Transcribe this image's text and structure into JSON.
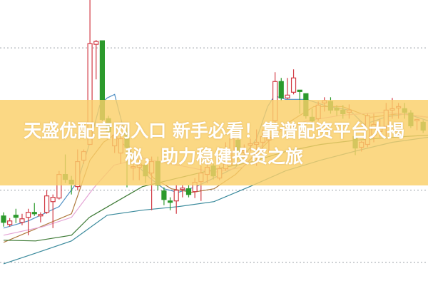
{
  "title": "天盛优配官网入口 新手必看！靠谱配资平台大揭秘，助力稳健投资之旅",
  "colors": {
    "up": "#d23a44",
    "down": "#2c9a2c",
    "banner": "#f9d069",
    "grid": "#9aa0a8"
  },
  "chart_data": {
    "type": "candlestick",
    "title": "",
    "xlabel": "",
    "ylabel": "",
    "ylim": [
      0,
      100
    ],
    "grid": {
      "horizontal": true,
      "style": "dotted",
      "levels": [
        83.25,
        33.5,
        8.25
      ]
    },
    "candles": [
      {
        "o": 24.5,
        "h": 25.75,
        "l": 20.75,
        "c": 22.25
      },
      {
        "o": 21.5,
        "h": 23.75,
        "l": 20.75,
        "c": 22.75
      },
      {
        "o": 24.75,
        "h": 27,
        "l": 22,
        "c": 24
      },
      {
        "o": 22.25,
        "h": 25.25,
        "l": 21.25,
        "c": 23.5
      },
      {
        "o": 24,
        "h": 27,
        "l": 17.75,
        "c": 25.75
      },
      {
        "o": 25.75,
        "h": 29,
        "l": 24.5,
        "c": 25.25
      },
      {
        "o": 24.5,
        "h": 25.75,
        "l": 22.25,
        "c": 25
      },
      {
        "o": 25.75,
        "h": 33.5,
        "l": 25.25,
        "c": 31.5
      },
      {
        "o": 29.5,
        "h": 32,
        "l": 20.25,
        "c": 31
      },
      {
        "o": 30.75,
        "h": 40.25,
        "l": 30.25,
        "c": 39
      },
      {
        "o": 39,
        "h": 46,
        "l": 36,
        "c": 37.25
      },
      {
        "o": 37,
        "h": 38.5,
        "l": 32,
        "c": 35.75
      },
      {
        "o": 34.75,
        "h": 47.75,
        "l": 33.5,
        "c": 43.5
      },
      {
        "o": 44,
        "h": 47.75,
        "l": 42.75,
        "c": 47
      },
      {
        "o": 49.5,
        "h": 100,
        "l": 49.5,
        "c": 84.75
      },
      {
        "o": 84.5,
        "h": 86,
        "l": 72.25,
        "c": 85.5
      },
      {
        "o": 85.75,
        "h": 85.75,
        "l": 57.75,
        "c": 58.25
      },
      {
        "o": 58.5,
        "h": 59.5,
        "l": 53.5,
        "c": 54
      },
      {
        "o": 49,
        "h": 55.25,
        "l": 46.5,
        "c": 52.75
      },
      {
        "o": 46.5,
        "h": 54,
        "l": 42.75,
        "c": 51.5
      },
      {
        "o": 53.5,
        "h": 55.25,
        "l": 34.5,
        "c": 48.5
      },
      {
        "o": 41.25,
        "h": 42.75,
        "l": 37,
        "c": 41.75
      },
      {
        "o": 41.5,
        "h": 43.5,
        "l": 37,
        "c": 42.25
      },
      {
        "o": 42.25,
        "h": 42.75,
        "l": 36,
        "c": 38.5
      },
      {
        "o": 39.5,
        "h": 45.25,
        "l": 26.5,
        "c": 43.5
      },
      {
        "o": 43.5,
        "h": 45.25,
        "l": 33.5,
        "c": 35.25
      },
      {
        "o": 33.25,
        "h": 34.5,
        "l": 28.25,
        "c": 30.25
      },
      {
        "o": 29.75,
        "h": 31,
        "l": 26.5,
        "c": 29.25
      },
      {
        "o": 29.75,
        "h": 35.25,
        "l": 25.25,
        "c": 33.5
      },
      {
        "o": 33.75,
        "h": 35.25,
        "l": 31,
        "c": 34.25
      },
      {
        "o": 34,
        "h": 35.25,
        "l": 31,
        "c": 32
      },
      {
        "o": 33,
        "h": 37.75,
        "l": 30.75,
        "c": 36.25
      },
      {
        "o": 36.5,
        "h": 42,
        "l": 29.75,
        "c": 39.5
      },
      {
        "o": 39,
        "h": 42.75,
        "l": 36,
        "c": 41.5
      },
      {
        "o": 42,
        "h": 42.75,
        "l": 37.25,
        "c": 38.5
      },
      {
        "o": 37.75,
        "h": 42,
        "l": 37,
        "c": 41
      },
      {
        "o": 41,
        "h": 50.25,
        "l": 40.25,
        "c": 42.75
      },
      {
        "o": 47,
        "h": 53.5,
        "l": 42,
        "c": 51.5
      },
      {
        "o": 51,
        "h": 52,
        "l": 44,
        "c": 47
      },
      {
        "o": 46.75,
        "h": 49.5,
        "l": 42.75,
        "c": 47.25
      },
      {
        "o": 49.25,
        "h": 51.5,
        "l": 47,
        "c": 49.75
      },
      {
        "o": 49.5,
        "h": 54.75,
        "l": 42,
        "c": 50.25
      },
      {
        "o": 50.25,
        "h": 54.75,
        "l": 47,
        "c": 52.25
      },
      {
        "o": 51,
        "h": 54.75,
        "l": 47,
        "c": 52
      },
      {
        "o": 57.75,
        "h": 74.75,
        "l": 56,
        "c": 71.5
      },
      {
        "o": 71.5,
        "h": 72.75,
        "l": 64.75,
        "c": 65.75
      },
      {
        "o": 65.75,
        "h": 72.75,
        "l": 65.25,
        "c": 66.75
      },
      {
        "o": 67.75,
        "h": 75.75,
        "l": 67,
        "c": 72.75
      },
      {
        "o": 68.5,
        "h": 68.5,
        "l": 60.25,
        "c": 68
      },
      {
        "o": 67.25,
        "h": 67.25,
        "l": 58.5,
        "c": 59.5
      },
      {
        "o": 59,
        "h": 62,
        "l": 55.25,
        "c": 57.75
      },
      {
        "o": 58.5,
        "h": 64.5,
        "l": 57.75,
        "c": 63.25
      },
      {
        "o": 64,
        "h": 66,
        "l": 61,
        "c": 64.75
      },
      {
        "o": 64.5,
        "h": 66,
        "l": 60.25,
        "c": 61.5
      },
      {
        "o": 62.25,
        "h": 63.25,
        "l": 59.5,
        "c": 61.5
      },
      {
        "o": 61.5,
        "h": 63.25,
        "l": 58.5,
        "c": 60.25
      },
      {
        "o": 60.75,
        "h": 63.5,
        "l": 58.5,
        "c": 61.5
      },
      {
        "o": 52.25,
        "h": 53.5,
        "l": 45.75,
        "c": 48.25
      },
      {
        "o": 48.5,
        "h": 50.75,
        "l": 47,
        "c": 50.25
      },
      {
        "o": 49.5,
        "h": 60.25,
        "l": 48.5,
        "c": 59.5
      },
      {
        "o": 52.75,
        "h": 60.25,
        "l": 50.25,
        "c": 56.5
      },
      {
        "o": 54,
        "h": 58.5,
        "l": 52,
        "c": 55.25
      },
      {
        "o": 55.75,
        "h": 64,
        "l": 52.25,
        "c": 61.5
      },
      {
        "o": 61.5,
        "h": 65.75,
        "l": 58.5,
        "c": 62
      },
      {
        "o": 62.25,
        "h": 64,
        "l": 58.5,
        "c": 62.75
      },
      {
        "o": 62,
        "h": 64,
        "l": 58.5,
        "c": 60.75
      },
      {
        "o": 60.5,
        "h": 61.5,
        "l": 55.25,
        "c": 56
      },
      {
        "o": 57.75,
        "h": 58.5,
        "l": 54.5,
        "c": 58.25
      },
      {
        "o": 57.25,
        "h": 58,
        "l": 53.5,
        "c": 54.5
      }
    ],
    "moving_averages": [
      {
        "color": "#4f8fc4",
        "points": [
          [
            0,
            20.25
          ],
          [
            4,
            22.75
          ],
          [
            9,
            27.75
          ],
          [
            12,
            36.5
          ],
          [
            14,
            50.25
          ],
          [
            15.6,
            63.25
          ],
          [
            16.8,
            65.75
          ],
          [
            18,
            67
          ],
          [
            19.7,
            52.75
          ],
          [
            21.4,
            42.75
          ],
          [
            23.7,
            37.75
          ],
          [
            26,
            34
          ],
          [
            28.3,
            32.75
          ],
          [
            31.2,
            34.75
          ],
          [
            34.1,
            37.75
          ],
          [
            37.6,
            41.5
          ],
          [
            41,
            51.5
          ],
          [
            42.8,
            62.75
          ],
          [
            43.9,
            66.5
          ],
          [
            45.7,
            65.25
          ],
          [
            49.1,
            65.25
          ],
          [
            52.6,
            62.75
          ],
          [
            56.1,
            61.5
          ],
          [
            58.4,
            56.5
          ],
          [
            61.8,
            59
          ],
          [
            65.3,
            60.25
          ],
          [
            68.8,
            57.75
          ]
        ]
      },
      {
        "color": "#b07a3e",
        "points": [
          [
            0,
            15.25
          ],
          [
            11,
            25.25
          ],
          [
            14,
            44
          ],
          [
            16.2,
            50.25
          ],
          [
            17.9,
            52.75
          ],
          [
            19.7,
            49
          ],
          [
            24.3,
            37.75
          ],
          [
            27.2,
            34
          ],
          [
            30.6,
            32.75
          ],
          [
            34.1,
            34
          ],
          [
            37.6,
            39
          ],
          [
            42.2,
            49
          ],
          [
            45.7,
            56.5
          ],
          [
            50.3,
            62.75
          ],
          [
            54.9,
            62.75
          ],
          [
            59.5,
            59
          ],
          [
            64.2,
            60.25
          ],
          [
            68.8,
            59
          ]
        ]
      },
      {
        "color": "#e4a3d4",
        "points": [
          [
            0,
            17.75
          ],
          [
            6.4,
            20.75
          ],
          [
            11,
            24
          ],
          [
            14.5,
            34
          ],
          [
            17.9,
            42.25
          ],
          [
            22.5,
            44.75
          ],
          [
            28.3,
            42.25
          ],
          [
            34.1,
            39.75
          ],
          [
            38.7,
            41.5
          ],
          [
            43.4,
            52.75
          ],
          [
            49.1,
            57.75
          ],
          [
            54.9,
            59.75
          ],
          [
            61.8,
            60.75
          ],
          [
            68.8,
            59
          ]
        ]
      },
      {
        "color": "#3d7a35",
        "points": [
          [
            0,
            16
          ],
          [
            5.2,
            15.75
          ],
          [
            11,
            17.75
          ],
          [
            13.9,
            24
          ],
          [
            17.9,
            29
          ],
          [
            22.5,
            34.75
          ],
          [
            28.3,
            37.75
          ],
          [
            34.1,
            40.75
          ],
          [
            39.9,
            43.25
          ],
          [
            45.7,
            47
          ],
          [
            51.4,
            49.5
          ],
          [
            57.2,
            51
          ],
          [
            63,
            52
          ],
          [
            68.8,
            52.75
          ]
        ]
      },
      {
        "color": "#3a8a9c",
        "points": [
          [
            0,
            7.75
          ],
          [
            5.2,
            11.5
          ],
          [
            11,
            15.75
          ],
          [
            16.8,
            24.75
          ],
          [
            22.5,
            26.5
          ],
          [
            28.3,
            27.75
          ],
          [
            34.1,
            29.5
          ],
          [
            39.9,
            34.75
          ],
          [
            45.7,
            40.25
          ],
          [
            51.4,
            44
          ],
          [
            57.2,
            47.25
          ],
          [
            63,
            50.25
          ],
          [
            68.8,
            52
          ]
        ]
      }
    ]
  }
}
